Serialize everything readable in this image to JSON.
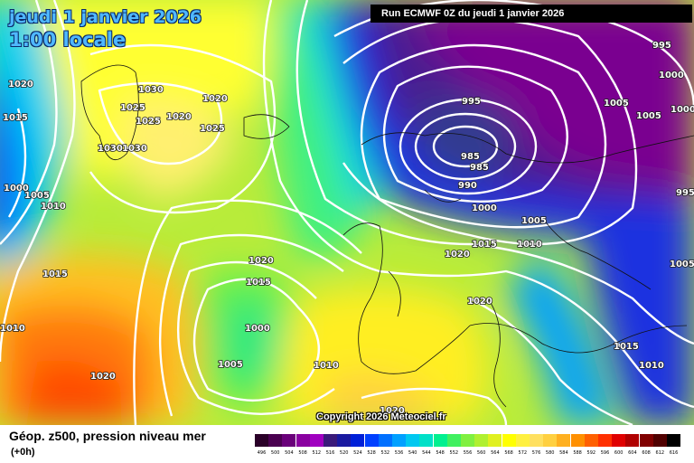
{
  "header": {
    "date_line": "jeudi 1 janvier 2026",
    "time_line": "1:00 locale",
    "run_banner": "Run ECMWF 0Z du jeudi 1 janvier 2026"
  },
  "footer": {
    "field_label": "Géop. z500, pression niveau mer",
    "lead_time": "(+0h)",
    "copyright": "Copyright 2026 Meteociel.fr"
  },
  "legend": {
    "scale_values": [
      "496",
      "500",
      "504",
      "508",
      "512",
      "516",
      "520",
      "524",
      "528",
      "532",
      "536",
      "540",
      "544",
      "548",
      "552",
      "556",
      "560",
      "564",
      "568",
      "572",
      "576",
      "580",
      "584",
      "588",
      "592",
      "596",
      "600",
      "604",
      "608",
      "612",
      "616"
    ],
    "scale_colors": [
      "#2a0028",
      "#4a0050",
      "#6a007a",
      "#8a00a0",
      "#a000c0",
      "#3a1a7a",
      "#1a1aa0",
      "#0020d8",
      "#0040ff",
      "#0070ff",
      "#00a0ff",
      "#00c8f0",
      "#00e0c8",
      "#00f090",
      "#40f060",
      "#80f040",
      "#b0f030",
      "#e0f020",
      "#ffff00",
      "#fff040",
      "#ffe060",
      "#ffd040",
      "#ffb020",
      "#ff9000",
      "#ff6000",
      "#ff3000",
      "#e00000",
      "#b00000",
      "#800000",
      "#500000",
      "#000000"
    ]
  },
  "pressure_labels": [
    {
      "value": "995",
      "id": "label-995-ne"
    },
    {
      "value": "1000",
      "id": "label-1000-ne"
    },
    {
      "value": "1000",
      "id": "label-1000-e"
    },
    {
      "value": "1005",
      "id": "label-1005-e"
    },
    {
      "value": "1005",
      "id": "label-1005-n"
    },
    {
      "value": "995",
      "id": "label-995-low"
    },
    {
      "value": "985",
      "id": "label-985-a"
    },
    {
      "value": "985",
      "id": "label-985-b"
    },
    {
      "value": "990",
      "id": "label-990"
    },
    {
      "value": "1000",
      "id": "label-1000-center"
    },
    {
      "value": "1005",
      "id": "label-1005-center"
    },
    {
      "value": "1010",
      "id": "label-1010-center"
    },
    {
      "value": "1015",
      "id": "label-1015-center"
    },
    {
      "value": "1020",
      "id": "label-1020-center"
    },
    {
      "value": "995",
      "id": "label-995-east"
    },
    {
      "value": "1005",
      "id": "label-1005-east"
    },
    {
      "value": "1020",
      "id": "label-1020-italy"
    },
    {
      "value": "1015",
      "id": "label-1015-balkan"
    },
    {
      "value": "1010",
      "id": "label-1010-turkey"
    },
    {
      "value": "1020",
      "id": "label-1020-greenland-w"
    },
    {
      "value": "1030",
      "id": "label-1030-n"
    },
    {
      "value": "1025",
      "id": "label-1025-a"
    },
    {
      "value": "1025",
      "id": "label-1025-b"
    },
    {
      "value": "1020",
      "id": "label-1020-c"
    },
    {
      "value": "1020",
      "id": "label-1020-d"
    },
    {
      "value": "1025",
      "id": "label-1025-iceland"
    },
    {
      "value": "1030",
      "id": "label-1030-a"
    },
    {
      "value": "1030",
      "id": "label-1030-b"
    },
    {
      "value": "1015",
      "id": "label-1015-w"
    },
    {
      "value": "1000",
      "id": "label-1000-w"
    },
    {
      "value": "1005",
      "id": "label-1005-w"
    },
    {
      "value": "1010",
      "id": "label-1010-w"
    },
    {
      "value": "1015",
      "id": "label-1015-sw"
    },
    {
      "value": "1010",
      "id": "label-1010-sw"
    },
    {
      "value": "1020",
      "id": "label-1020-atl"
    },
    {
      "value": "1015",
      "id": "label-1015-atl"
    },
    {
      "value": "1000",
      "id": "label-1000-atl"
    },
    {
      "value": "1005",
      "id": "label-1005-atl"
    },
    {
      "value": "1010",
      "id": "label-1010-atl"
    },
    {
      "value": "1020",
      "id": "label-1020-south"
    },
    {
      "value": "1020",
      "id": "label-1020-africa"
    }
  ]
}
